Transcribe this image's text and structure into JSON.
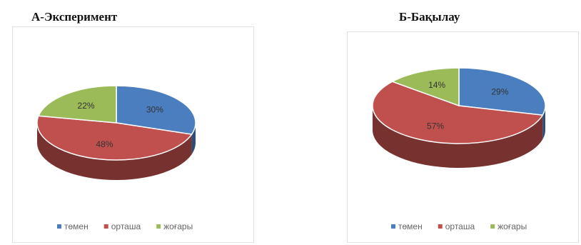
{
  "chart_data": [
    {
      "type": "pie",
      "title": "А-Эксперимент",
      "categories": [
        "төмен",
        "орташа",
        "жоғары"
      ],
      "values": [
        30,
        48,
        22
      ],
      "labels": [
        "30%",
        "48%",
        "22%"
      ],
      "colors": [
        "#4a7ebf",
        "#c0504d",
        "#9bbb59"
      ],
      "legend_position": "bottom"
    },
    {
      "type": "pie",
      "title": "Б-Бақылау",
      "categories": [
        "төмен",
        "орташа",
        "жоғары"
      ],
      "values": [
        29,
        57,
        14
      ],
      "labels": [
        "29%",
        "57%",
        "14%"
      ],
      "colors": [
        "#4a7ebf",
        "#c0504d",
        "#9bbb59"
      ],
      "legend_position": "bottom"
    }
  ]
}
